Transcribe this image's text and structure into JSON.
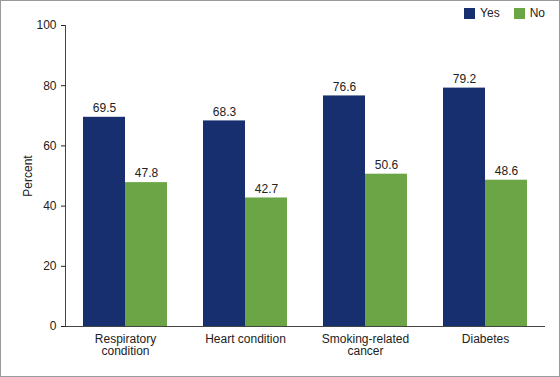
{
  "chart_data": {
    "type": "bar",
    "categories": [
      "Respiratory condition",
      "Heart condition",
      "Smoking-related cancer",
      "Diabetes"
    ],
    "series": [
      {
        "name": "Yes",
        "color": "#172f6e",
        "values": [
          69.5,
          68.3,
          76.6,
          79.2
        ]
      },
      {
        "name": "No",
        "color": "#6ca545",
        "values": [
          47.8,
          42.7,
          50.6,
          48.6
        ]
      }
    ],
    "y_label": "Percent",
    "ylim": [
      0,
      100
    ],
    "yticks": [
      0,
      20,
      40,
      60,
      80,
      100
    ],
    "grid": false,
    "legend": "top-right",
    "data_labels": true
  }
}
